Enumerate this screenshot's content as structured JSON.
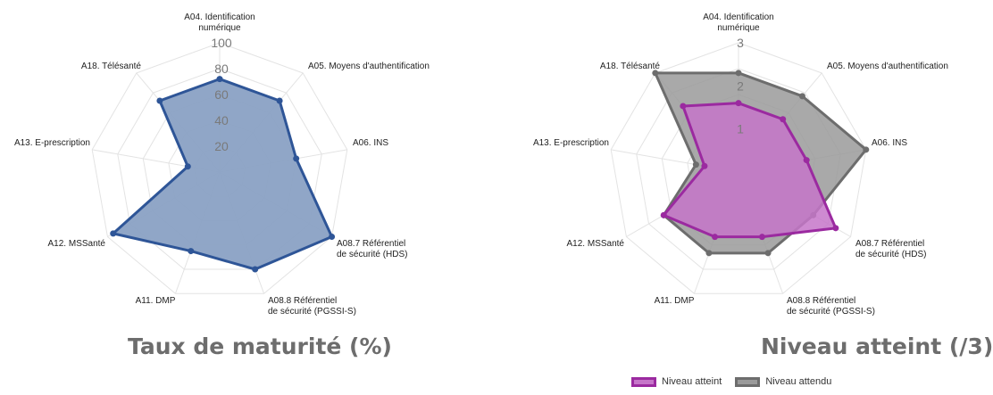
{
  "chart_data": [
    {
      "type": "radar",
      "caption": "Taux de maturité (%)",
      "categories": [
        "A04. Identification numérique",
        "A05. Moyens d'authentification",
        "A06. INS",
        "A08.7 Référentiel de sécurité (HDS)",
        "A08.8 Référentiel de sécurité (PGSSI-S)",
        "A11. DMP",
        "A12. MSSanté",
        "A13. E-prescription",
        "A18. Télésanté"
      ],
      "rlim": [
        0,
        100
      ],
      "rticks": [
        20,
        40,
        60,
        80,
        100
      ],
      "series": [
        {
          "values": [
            72,
            72,
            60,
            100,
            80,
            65,
            95,
            25,
            72
          ],
          "color": "#2e5597",
          "fill": "#8aa1c4"
        }
      ]
    },
    {
      "type": "radar",
      "caption": "Niveau atteint (/3)",
      "categories": [
        "A04. Identification numérique",
        "A05. Moyens d'authentification",
        "A06. INS",
        "A08.7 Référentiel de sécurité (HDS)",
        "A08.8 Référentiel de sécurité (PGSSI-S)",
        "A11. DMP",
        "A12. MSSanté",
        "A13. E-prescription",
        "A18. Télésanté"
      ],
      "rlim": [
        0,
        3
      ],
      "rticks": [
        1,
        2,
        3
      ],
      "series": [
        {
          "name": "Niveau atteint",
          "values": [
            1.6,
            1.6,
            1.6,
            2.6,
            1.6,
            1.6,
            2.0,
            0.8,
            2.0
          ],
          "color": "#9b2aa0",
          "fill": "#c676c9"
        },
        {
          "name": "Niveau attendu",
          "values": [
            2.3,
            2.3,
            3.0,
            2.0,
            2.0,
            2.0,
            2.0,
            1.0,
            3.0
          ],
          "color": "#6d6d6d",
          "fill": "#9a9a9a"
        }
      ]
    }
  ]
}
